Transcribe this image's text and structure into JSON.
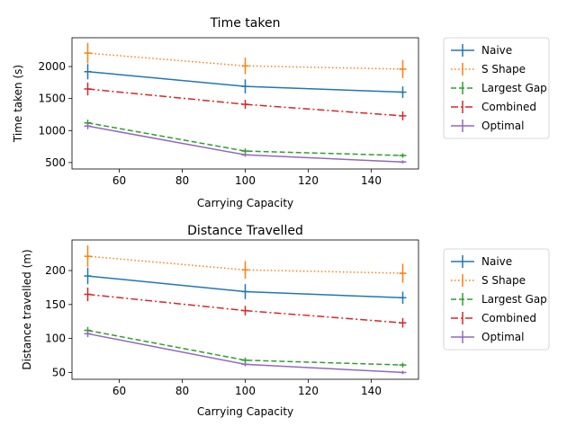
{
  "styles": {
    "Naive": {
      "color": "#1f77b4",
      "dash": ""
    },
    "S Shape": {
      "color": "#ff7f0e",
      "dash": "1.5 2.5"
    },
    "Largest Gap": {
      "color": "#2ca02c",
      "dash": "6 3"
    },
    "Combined": {
      "color": "#d62728",
      "dash": "8 3 2 3"
    },
    "Optimal": {
      "color": "#9467bd",
      "dash": ""
    }
  },
  "chart_data": [
    {
      "type": "line",
      "title": "Time taken",
      "xlabel": "Carrying Capacity",
      "ylabel": "Time taken (s)",
      "xlim": [
        45,
        155
      ],
      "ylim": [
        400,
        2450
      ],
      "xticks": [
        60,
        80,
        100,
        120,
        140
      ],
      "yticks": [
        500,
        1000,
        1500,
        2000
      ],
      "legend": "outside-right",
      "x": [
        50,
        100,
        150
      ],
      "series": [
        {
          "name": "Naive",
          "values": [
            1920,
            1690,
            1600
          ],
          "errors": [
            120,
            110,
            90
          ]
        },
        {
          "name": "S Shape",
          "values": [
            2210,
            2010,
            1960
          ],
          "errors": [
            160,
            130,
            140
          ]
        },
        {
          "name": "Largest Gap",
          "values": [
            1120,
            680,
            610
          ],
          "errors": [
            50,
            40,
            35
          ]
        },
        {
          "name": "Combined",
          "values": [
            1650,
            1410,
            1230
          ],
          "errors": [
            100,
            70,
            70
          ]
        },
        {
          "name": "Optimal",
          "values": [
            1070,
            620,
            510
          ],
          "errors": [
            50,
            30,
            25
          ]
        }
      ]
    },
    {
      "type": "line",
      "title": "Distance Travelled",
      "xlabel": "Carrying Capacity",
      "ylabel": "Distance travelled (m)",
      "xlim": [
        45,
        155
      ],
      "ylim": [
        40,
        245
      ],
      "xticks": [
        60,
        80,
        100,
        120,
        140
      ],
      "yticks": [
        50,
        100,
        150,
        200
      ],
      "legend": "outside-right",
      "x": [
        50,
        100,
        150
      ],
      "series": [
        {
          "name": "Naive",
          "values": [
            192,
            169,
            160
          ],
          "errors": [
            12,
            11,
            9
          ]
        },
        {
          "name": "S Shape",
          "values": [
            221,
            201,
            196
          ],
          "errors": [
            16,
            13,
            14
          ]
        },
        {
          "name": "Largest Gap",
          "values": [
            112,
            68,
            61
          ],
          "errors": [
            5,
            4,
            3.5
          ]
        },
        {
          "name": "Combined",
          "values": [
            165,
            141,
            123
          ],
          "errors": [
            10,
            7,
            7
          ]
        },
        {
          "name": "Optimal",
          "values": [
            107,
            62,
            50
          ],
          "errors": [
            5,
            3,
            2.5
          ]
        }
      ]
    }
  ]
}
